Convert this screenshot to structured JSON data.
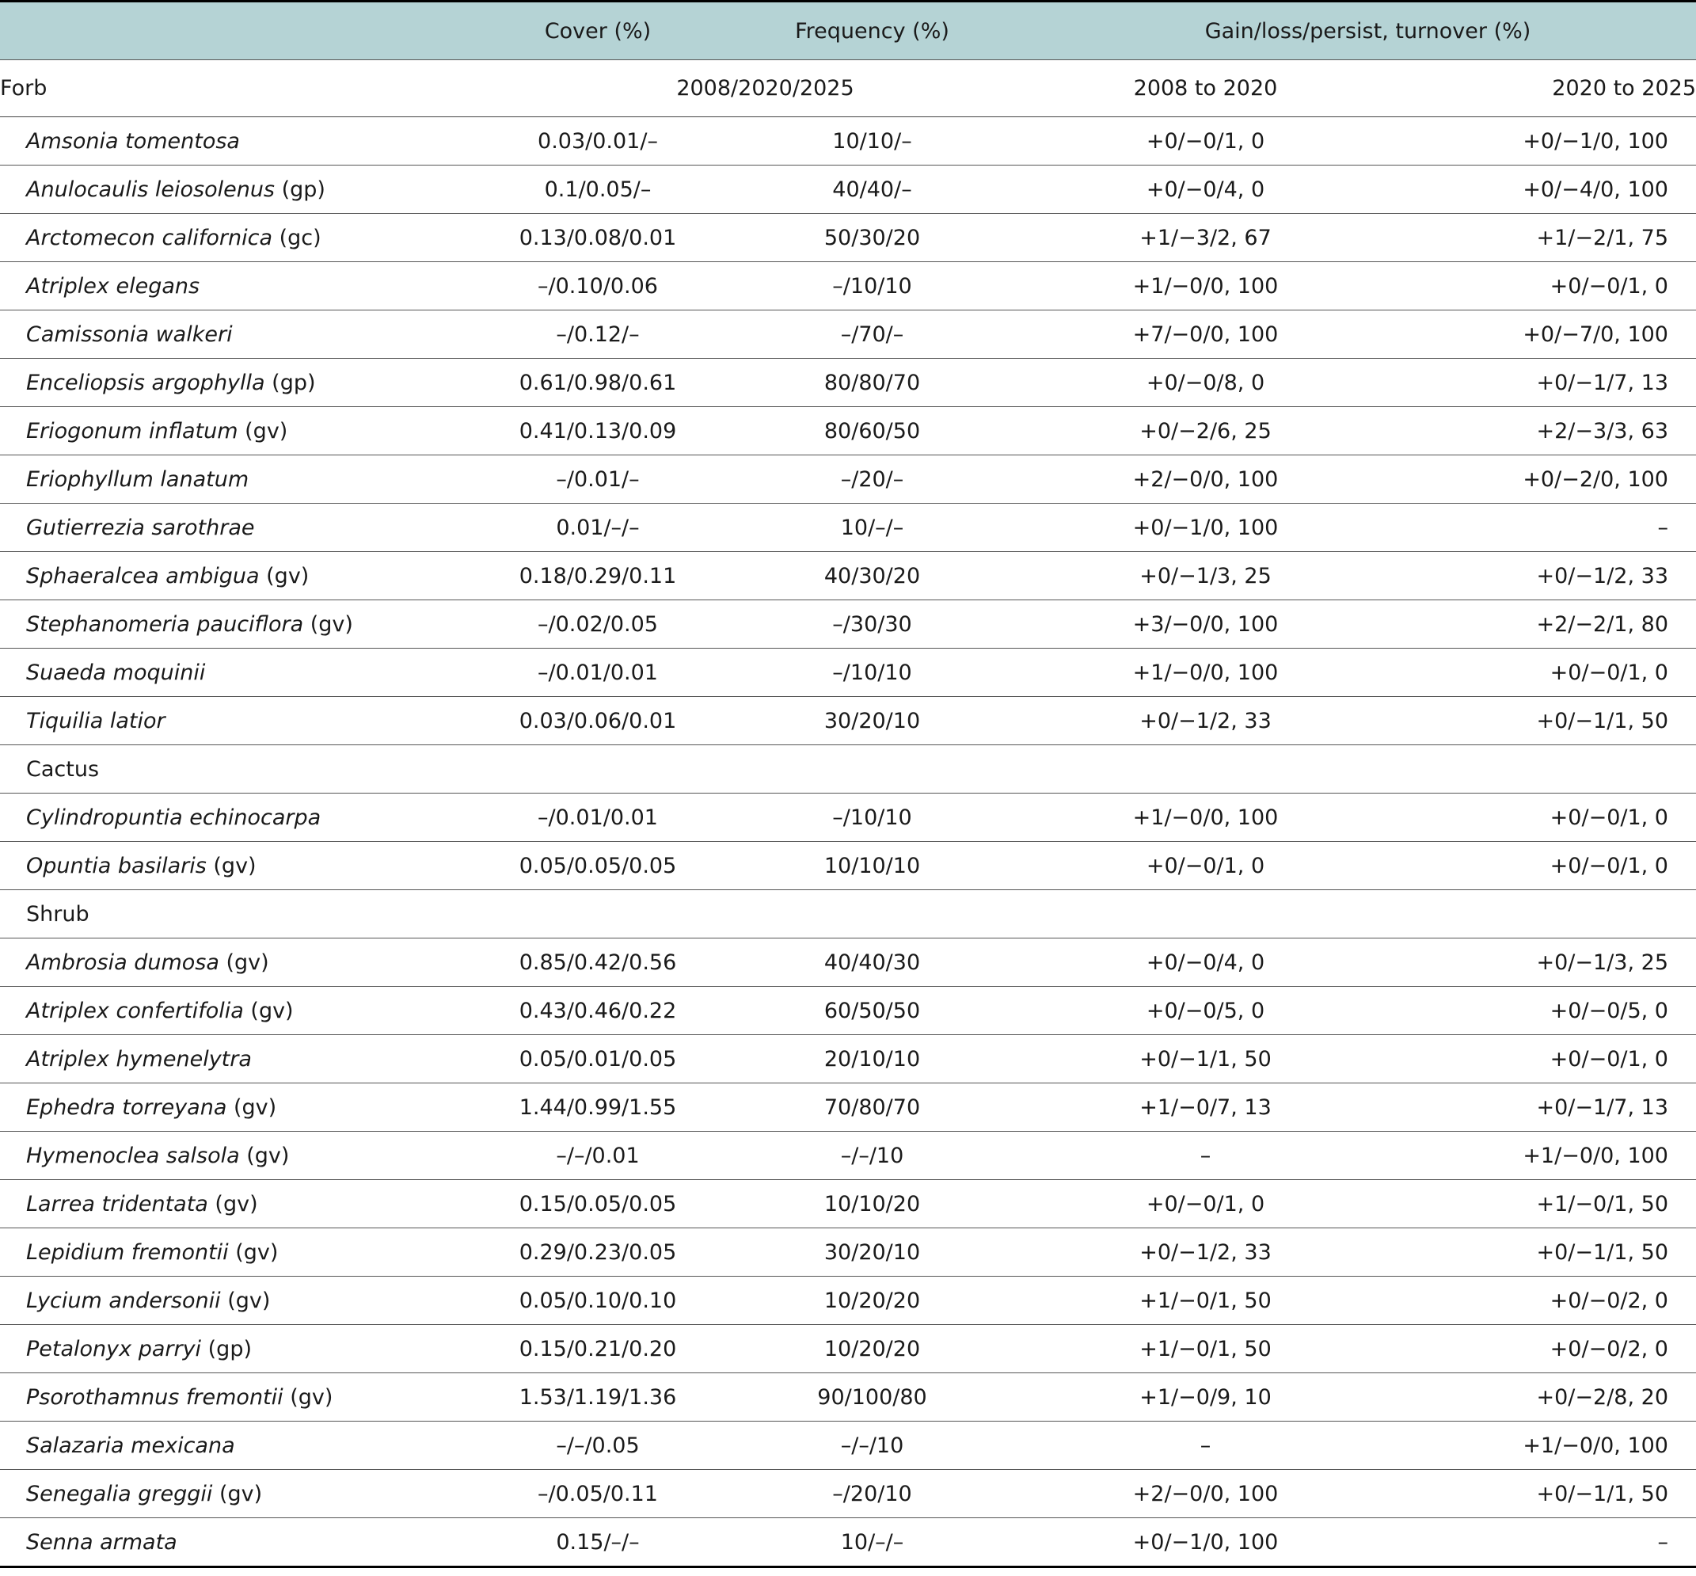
{
  "headers": {
    "cover": "Cover (%)",
    "frequency": "Frequency (%)",
    "gain": "Gain/loss/persist, turnover (%)"
  },
  "subheader": {
    "group": "Forb",
    "years": "2008/2020/2025",
    "period1": "2008 to 2020",
    "period2": "2020 to 2025"
  },
  "rows": [
    {
      "name": "Amsonia tomentosa",
      "code": "",
      "cover": "0.03/0.01/–",
      "freq": "10/10/–",
      "p1": "+0/−0/1, 0",
      "p2": "+0/−1/0, 100"
    },
    {
      "name": "Anulocaulis leiosolenus",
      "code": " (gp)",
      "cover": "0.1/0.05/–",
      "freq": "40/40/–",
      "p1": "+0/−0/4, 0",
      "p2": "+0/−4/0, 100"
    },
    {
      "name": "Arctomecon californica",
      "code": " (gc)",
      "cover": "0.13/0.08/0.01",
      "freq": "50/30/20",
      "p1": "+1/−3/2, 67",
      "p2": "+1/−2/1, 75"
    },
    {
      "name": "Atriplex elegans",
      "code": "",
      "cover": "–/0.10/0.06",
      "freq": "–/10/10",
      "p1": "+1/−0/0, 100",
      "p2": "+0/−0/1, 0"
    },
    {
      "name": "Camissonia walkeri",
      "code": "",
      "cover": "–/0.12/–",
      "freq": "–/70/–",
      "p1": "+7/−0/0, 100",
      "p2": "+0/−7/0, 100"
    },
    {
      "name": "Enceliopsis argophylla",
      "code": " (gp)",
      "cover": "0.61/0.98/0.61",
      "freq": "80/80/70",
      "p1": "+0/−0/8, 0",
      "p2": "+0/−1/7, 13"
    },
    {
      "name": "Eriogonum inflatum",
      "code": " (gv)",
      "cover": "0.41/0.13/0.09",
      "freq": "80/60/50",
      "p1": "+0/−2/6, 25",
      "p2": "+2/−3/3, 63"
    },
    {
      "name": "Eriophyllum lanatum",
      "code": "",
      "cover": "–/0.01/–",
      "freq": "–/20/–",
      "p1": "+2/−0/0, 100",
      "p2": "+0/−2/0, 100"
    },
    {
      "name": "Gutierrezia sarothrae",
      "code": "",
      "cover": "0.01/–/–",
      "freq": "10/–/–",
      "p1": "+0/−1/0, 100",
      "p2": "–"
    },
    {
      "name": "Sphaeralcea ambigua",
      "code": " (gv)",
      "cover": "0.18/0.29/0.11",
      "freq": "40/30/20",
      "p1": "+0/−1/3, 25",
      "p2": "+0/−1/2, 33"
    },
    {
      "name": "Stephanomeria pauciflora",
      "code": " (gv)",
      "cover": "–/0.02/0.05",
      "freq": "–/30/30",
      "p1": "+3/−0/0, 100",
      "p2": "+2/−2/1, 80"
    },
    {
      "name": "Suaeda moquinii",
      "code": "",
      "cover": "–/0.01/0.01",
      "freq": "–/10/10",
      "p1": "+1/−0/0, 100",
      "p2": "+0/−0/1, 0"
    },
    {
      "name": "Tiquilia latior",
      "code": "",
      "cover": "0.03/0.06/0.01",
      "freq": "30/20/10",
      "p1": "+0/−1/2, 33",
      "p2": "+0/−1/1, 50"
    },
    {
      "group": "Cactus"
    },
    {
      "name": "Cylindropuntia echinocarpa",
      "code": "",
      "cover": "–/0.01/0.01",
      "freq": "–/10/10",
      "p1": "+1/−0/0, 100",
      "p2": "+0/−0/1, 0"
    },
    {
      "name": "Opuntia basilaris",
      "code": " (gv)",
      "cover": "0.05/0.05/0.05",
      "freq": "10/10/10",
      "p1": "+0/−0/1, 0",
      "p2": "+0/−0/1, 0"
    },
    {
      "group": "Shrub"
    },
    {
      "name": "Ambrosia dumosa",
      "code": " (gv)",
      "cover": "0.85/0.42/0.56",
      "freq": "40/40/30",
      "p1": "+0/−0/4, 0",
      "p2": "+0/−1/3, 25"
    },
    {
      "name": "Atriplex confertifolia",
      "code": " (gv)",
      "cover": "0.43/0.46/0.22",
      "freq": "60/50/50",
      "p1": "+0/−0/5, 0",
      "p2": "+0/−0/5, 0"
    },
    {
      "name": "Atriplex hymenelytra",
      "code": "",
      "cover": "0.05/0.01/0.05",
      "freq": "20/10/10",
      "p1": "+0/−1/1, 50",
      "p2": "+0/−0/1, 0"
    },
    {
      "name": "Ephedra torreyana",
      "code": " (gv)",
      "cover": "1.44/0.99/1.55",
      "freq": "70/80/70",
      "p1": "+1/−0/7, 13",
      "p2": "+0/−1/7, 13"
    },
    {
      "name": "Hymenoclea salsola",
      "code": " (gv)",
      "cover": "–/–/0.01",
      "freq": "–/–/10",
      "p1": "–",
      "p2": "+1/−0/0, 100"
    },
    {
      "name": "Larrea tridentata",
      "code": " (gv)",
      "cover": "0.15/0.05/0.05",
      "freq": "10/10/20",
      "p1": "+0/−0/1, 0",
      "p2": "+1/−0/1, 50"
    },
    {
      "name": "Lepidium fremontii",
      "code": " (gv)",
      "cover": "0.29/0.23/0.05",
      "freq": "30/20/10",
      "p1": "+0/−1/2, 33",
      "p2": "+0/−1/1, 50"
    },
    {
      "name": "Lycium andersonii",
      "code": " (gv)",
      "cover": "0.05/0.10/0.10",
      "freq": "10/20/20",
      "p1": "+1/−0/1, 50",
      "p2": "+0/−0/2, 0"
    },
    {
      "name": "Petalonyx parryi",
      "code": " (gp)",
      "cover": "0.15/0.21/0.20",
      "freq": "10/20/20",
      "p1": "+1/−0/1, 50",
      "p2": "+0/−0/2, 0"
    },
    {
      "name": "Psorothamnus fremontii",
      "code": " (gv)",
      "cover": "1.53/1.19/1.36",
      "freq": "90/100/80",
      "p1": "+1/−0/9, 10",
      "p2": "+0/−2/8, 20"
    },
    {
      "name": "Salazaria mexicana",
      "code": "",
      "cover": "–/–/0.05",
      "freq": "–/–/10",
      "p1": "–",
      "p2": "+1/−0/0, 100"
    },
    {
      "name": "Senegalia greggii",
      "code": " (gv)",
      "cover": "–/0.05/0.11",
      "freq": "–/20/10",
      "p1": "+2/−0/0, 100",
      "p2": "+0/−1/1, 50"
    },
    {
      "name": "Senna armata",
      "code": "",
      "cover": "0.15/–/–",
      "freq": "10/–/–",
      "p1": "+0/−1/0, 100",
      "p2": "–"
    }
  ]
}
